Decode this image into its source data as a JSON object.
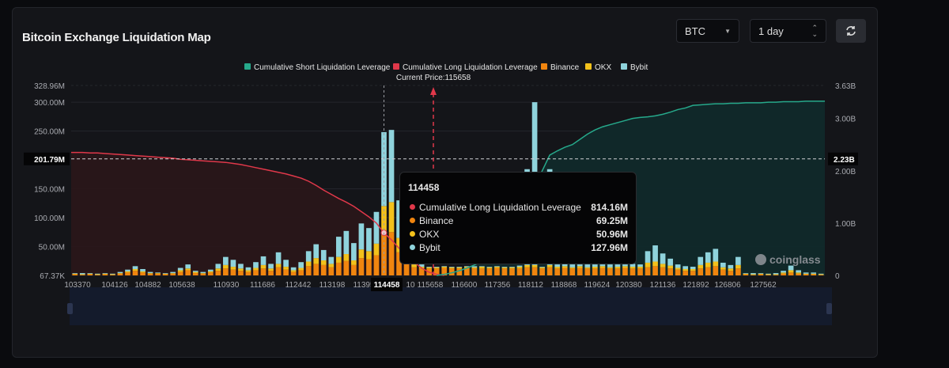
{
  "header": {
    "title": "Bitcoin Exchange Liquidation Map",
    "coin_select": "BTC",
    "period_select": "1 day",
    "refresh_icon": "refresh-icon"
  },
  "colors": {
    "short": "#26a98b",
    "long": "#e0384a",
    "binance": "#f0850f",
    "okx": "#f3c11b",
    "bybit": "#8fd3dc"
  },
  "watermark": "coinglass",
  "chart_data": {
    "type": "bar",
    "legend": [
      "Cumulative Short Liquidation Leverage",
      "Cumulative Long Liquidation Leverage",
      "Binance",
      "OKX",
      "Bybit"
    ],
    "legend_position": "top",
    "current_price_label": "Current Price:115658",
    "left_axis": {
      "ticks": [
        "328.96M",
        "300.00M",
        "250.00M",
        "150.00M",
        "100.00M",
        "50.00M",
        "67.37K"
      ],
      "tick_values": [
        328.96,
        300,
        250,
        150,
        100,
        50,
        0.06737
      ],
      "range": [
        0,
        328.96
      ],
      "unit": "M",
      "hover_label": "201.79M",
      "hover_value": 201.79
    },
    "right_axis": {
      "ticks": [
        "3.63B",
        "3.00B",
        "2.00B",
        "1.00B",
        "0"
      ],
      "tick_values": [
        3.63,
        3.0,
        2.0,
        1.0,
        0
      ],
      "range": [
        0,
        3.63
      ],
      "unit": "B",
      "hover_label": "2.23B",
      "hover_value": 2.23
    },
    "x_ticks": [
      "103370",
      "104126",
      "104882",
      "105638",
      "110930",
      "111686",
      "112442",
      "113198",
      "11395",
      "114458",
      "10",
      "115658",
      "116600",
      "117356",
      "118112",
      "118868",
      "119624",
      "120380",
      "121136",
      "121892",
      "126806",
      "127562"
    ],
    "x_highlight": "114458",
    "series": [
      {
        "name": "Binance",
        "values": [
          2,
          1,
          2,
          1,
          2,
          1,
          3,
          5,
          8,
          5,
          3,
          3,
          2,
          3,
          6,
          9,
          4,
          3,
          5,
          8,
          12,
          10,
          8,
          6,
          9,
          12,
          8,
          14,
          10,
          6,
          9,
          16,
          20,
          18,
          14,
          22,
          25,
          18,
          30,
          28,
          35,
          69.25,
          75,
          40,
          20,
          14,
          12,
          12,
          12,
          13,
          12,
          12,
          13,
          12,
          12,
          12,
          13,
          12,
          12,
          12,
          14,
          14,
          12,
          14,
          12,
          13,
          12,
          13,
          12,
          12,
          13,
          12,
          12,
          13,
          12,
          12,
          14,
          16,
          14,
          12,
          10,
          8,
          8,
          12,
          14,
          16,
          10,
          8,
          12,
          2,
          1,
          2,
          1,
          1,
          3,
          5,
          3,
          2,
          2,
          1
        ]
      },
      {
        "name": "OKX",
        "values": [
          1,
          1,
          1,
          1,
          1,
          1,
          1,
          2,
          3,
          2,
          1,
          1,
          1,
          1,
          3,
          3,
          2,
          1,
          2,
          4,
          6,
          5,
          4,
          3,
          4,
          6,
          4,
          6,
          5,
          3,
          4,
          8,
          10,
          8,
          6,
          10,
          12,
          8,
          15,
          14,
          20,
          50.96,
          52,
          25,
          10,
          5,
          3,
          2,
          2,
          2,
          2,
          2,
          2,
          2,
          3,
          2,
          2,
          2,
          2,
          3,
          4,
          4,
          2,
          4,
          3,
          3,
          2,
          3,
          2,
          3,
          3,
          2,
          3,
          3,
          3,
          3,
          8,
          8,
          6,
          5,
          3,
          3,
          3,
          6,
          8,
          8,
          4,
          4,
          6,
          1,
          1,
          1,
          1,
          1,
          2,
          4,
          2,
          1,
          1,
          1
        ]
      },
      {
        "name": "Bybit",
        "values": [
          1,
          2,
          1,
          1,
          1,
          1,
          2,
          3,
          5,
          4,
          2,
          1,
          1,
          2,
          4,
          7,
          2,
          2,
          3,
          8,
          14,
          12,
          8,
          5,
          10,
          15,
          8,
          20,
          12,
          5,
          10,
          18,
          24,
          18,
          12,
          35,
          40,
          30,
          45,
          40,
          55,
          127.96,
          125,
          65,
          25,
          8,
          4,
          1,
          1,
          1,
          1,
          1,
          1,
          2,
          1,
          1,
          1,
          1,
          1,
          2,
          166,
          282,
          1,
          166,
          4,
          4,
          5,
          3,
          5,
          4,
          3,
          5,
          4,
          3,
          5,
          4,
          20,
          28,
          18,
          12,
          6,
          5,
          4,
          14,
          18,
          22,
          8,
          6,
          14,
          1,
          2,
          1,
          1,
          2,
          3,
          8,
          4,
          2,
          2,
          1
        ]
      },
      {
        "name": "Cumulative Long Liquidation Leverage",
        "unit": "B",
        "values": [
          2.35,
          2.35,
          2.34,
          2.34,
          2.33,
          2.32,
          2.31,
          2.3,
          2.29,
          2.28,
          2.27,
          2.26,
          2.25,
          2.24,
          2.22,
          2.21,
          2.2,
          2.19,
          2.18,
          2.17,
          2.16,
          2.14,
          2.12,
          2.09,
          2.06,
          2.03,
          2.0,
          1.97,
          1.94,
          1.9,
          1.86,
          1.8,
          1.72,
          1.63,
          1.55,
          1.47,
          1.4,
          1.32,
          1.22,
          1.12,
          1.0,
          0.814,
          0.68,
          0.52,
          0.38,
          0.25,
          0.14,
          0.06,
          0.02,
          0
        ]
      },
      {
        "name": "Cumulative Short Liquidation Leverage",
        "unit": "B",
        "start_index": 48,
        "values": [
          0,
          0.02,
          0.05,
          0.09,
          0.14,
          0.2,
          0.27,
          0.35,
          0.45,
          0.6,
          0.8,
          1.05,
          1.35,
          1.7,
          2.0,
          2.3,
          2.38,
          2.45,
          2.5,
          2.6,
          2.7,
          2.78,
          2.84,
          2.88,
          2.92,
          2.96,
          3.0,
          3.02,
          3.03,
          3.05,
          3.08,
          3.12,
          3.17,
          3.2,
          3.25,
          3.26,
          3.27,
          3.28,
          3.28,
          3.29,
          3.29,
          3.3,
          3.3,
          3.3,
          3.31,
          3.31,
          3.32,
          3.32,
          3.32,
          3.33,
          3.33,
          3.33
        ]
      }
    ]
  },
  "tooltip": {
    "title": "114458",
    "rows": [
      {
        "label": "Cumulative Long Liquidation Leverage",
        "value": "814.16M",
        "color": "#e0384a"
      },
      {
        "label": "Binance",
        "value": "69.25M",
        "color": "#f0850f"
      },
      {
        "label": "OKX",
        "value": "50.96M",
        "color": "#f3c11b"
      },
      {
        "label": "Bybit",
        "value": "127.96M",
        "color": "#8fd3dc"
      }
    ]
  }
}
